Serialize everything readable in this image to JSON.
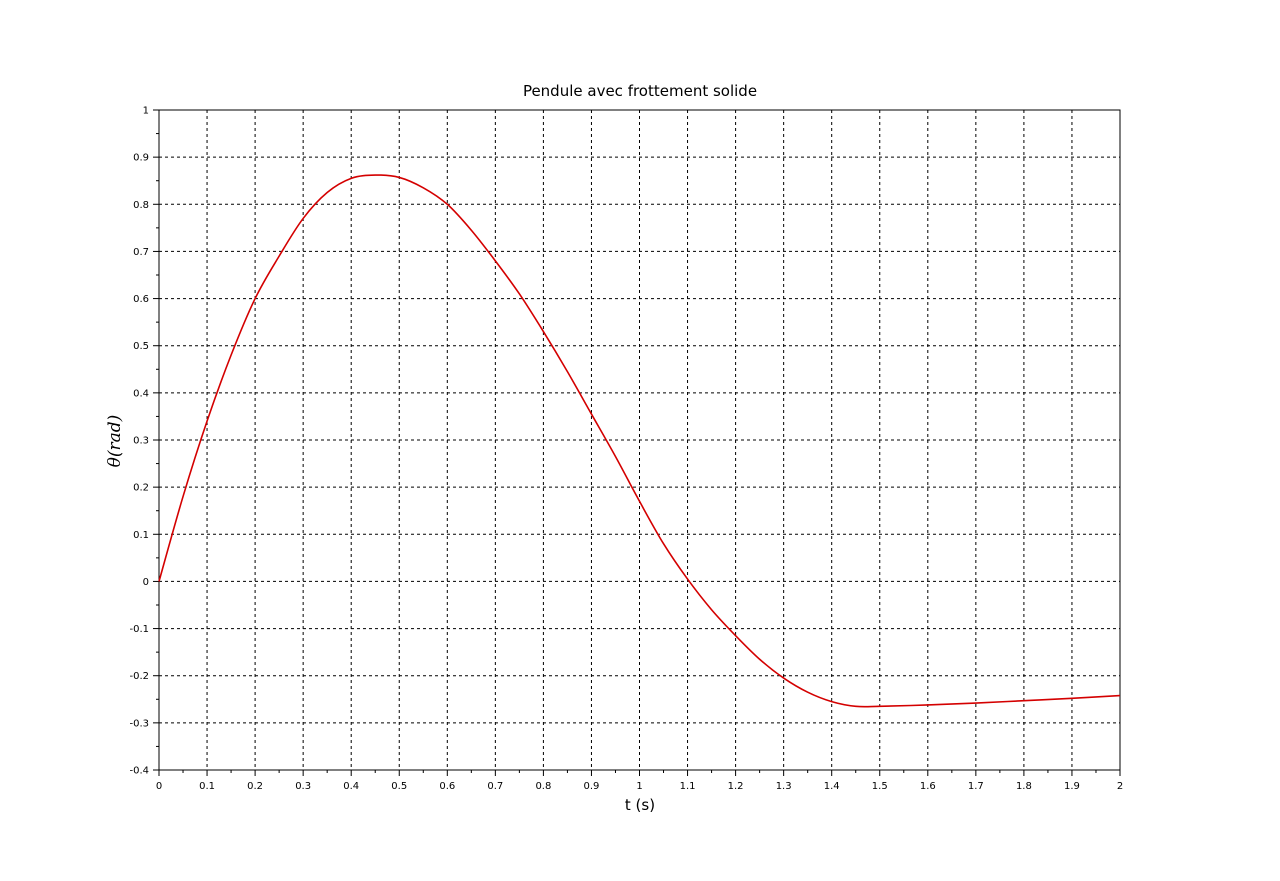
{
  "chart_data": {
    "type": "line",
    "title": "Pendule avec frottement solide",
    "xlabel": "t (s)",
    "ylabel": "θ(rad)",
    "xlim": [
      0,
      2
    ],
    "ylim": [
      -0.4,
      1
    ],
    "grid": true,
    "grid_style": "dashed",
    "x_ticks": [
      0,
      0.1,
      0.2,
      0.3,
      0.4,
      0.5,
      0.6,
      0.7,
      0.8,
      0.9,
      1,
      1.1,
      1.2,
      1.3,
      1.4,
      1.5,
      1.6,
      1.7,
      1.8,
      1.9,
      2
    ],
    "x_tick_labels": [
      "0",
      "0.1",
      "0.2",
      "0.3",
      "0.4",
      "0.5",
      "0.6",
      "0.7",
      "0.8",
      "0.9",
      "1",
      "1.1",
      "1.2",
      "1.3",
      "1.4",
      "1.5",
      "1.6",
      "1.7",
      "1.8",
      "1.9",
      "2"
    ],
    "y_ticks": [
      -0.4,
      -0.3,
      -0.2,
      -0.1,
      0,
      0.1,
      0.2,
      0.3,
      0.4,
      0.5,
      0.6,
      0.7,
      0.8,
      0.9,
      1
    ],
    "y_tick_labels": [
      "-0.4",
      "-0.3",
      "-0.2",
      "-0.1",
      "0",
      "0.1",
      "0.2",
      "0.3",
      "0.4",
      "0.5",
      "0.6",
      "0.7",
      "0.8",
      "0.9",
      "1"
    ],
    "series": [
      {
        "color": "#d40000",
        "x": [
          0,
          0.05,
          0.1,
          0.15,
          0.2,
          0.25,
          0.3,
          0.35,
          0.4,
          0.45,
          0.5,
          0.55,
          0.6,
          0.65,
          0.7,
          0.75,
          0.8,
          0.85,
          0.9,
          0.95,
          1,
          1.05,
          1.1,
          1.15,
          1.2,
          1.25,
          1.3,
          1.35,
          1.4,
          1.45,
          1.5,
          1.6,
          1.7,
          1.8,
          1.9,
          2
        ],
        "y": [
          0,
          0.18,
          0.34,
          0.48,
          0.6,
          0.69,
          0.77,
          0.825,
          0.855,
          0.862,
          0.857,
          0.835,
          0.8,
          0.745,
          0.68,
          0.61,
          0.53,
          0.445,
          0.355,
          0.265,
          0.17,
          0.08,
          0.005,
          -0.06,
          -0.115,
          -0.165,
          -0.205,
          -0.235,
          -0.255,
          -0.265,
          -0.265,
          -0.262,
          -0.258,
          -0.253,
          -0.248,
          -0.242
        ]
      }
    ]
  }
}
